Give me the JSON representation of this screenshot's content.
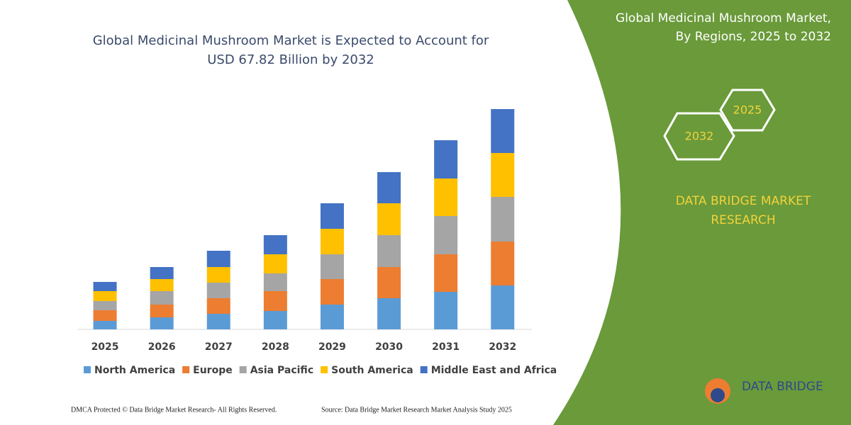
{
  "header": {
    "title_lines": [
      "Global Medicinal Mushroom Market is Expected to Account for",
      "USD 67.82 Billion by 2032"
    ]
  },
  "chart_data": {
    "type": "stacked-bar",
    "categories": [
      "2025",
      "2026",
      "2027",
      "2028",
      "2029",
      "2030",
      "2031",
      "2032"
    ],
    "series": [
      {
        "name": "North America",
        "color": "#5b9bd5",
        "values": [
          12,
          17,
          22,
          26,
          35,
          44,
          53,
          62
        ]
      },
      {
        "name": "Europe",
        "color": "#ed7d31",
        "values": [
          15,
          18,
          22,
          28,
          36,
          44,
          53,
          62
        ]
      },
      {
        "name": "Asia Pacific",
        "color": "#a5a5a5",
        "values": [
          13,
          19,
          22,
          25,
          35,
          45,
          54,
          63
        ]
      },
      {
        "name": "South America",
        "color": "#ffc000",
        "values": [
          14,
          17,
          22,
          27,
          36,
          45,
          53,
          62
        ]
      },
      {
        "name": "Middle East and Africa",
        "color": "#4472c4",
        "values": [
          13,
          17,
          23,
          27,
          36,
          44,
          54,
          62
        ]
      }
    ]
  },
  "panel": {
    "title_lines": [
      "Global Medicinal Mushroom Market,",
      "By Regions, 2025 to 2032"
    ],
    "hex_labels": [
      "2032",
      "2025"
    ],
    "brand_lines": [
      "DATA BRIDGE MARKET",
      "RESEARCH"
    ]
  },
  "logo": {
    "text": "DATA BRIDGE"
  },
  "footer": {
    "left": "DMCA Protected © Data Bridge Market Research-  All Rights Reserved.",
    "right": "Source: Data Bridge Market Research  Market Analysis Study 2025"
  }
}
